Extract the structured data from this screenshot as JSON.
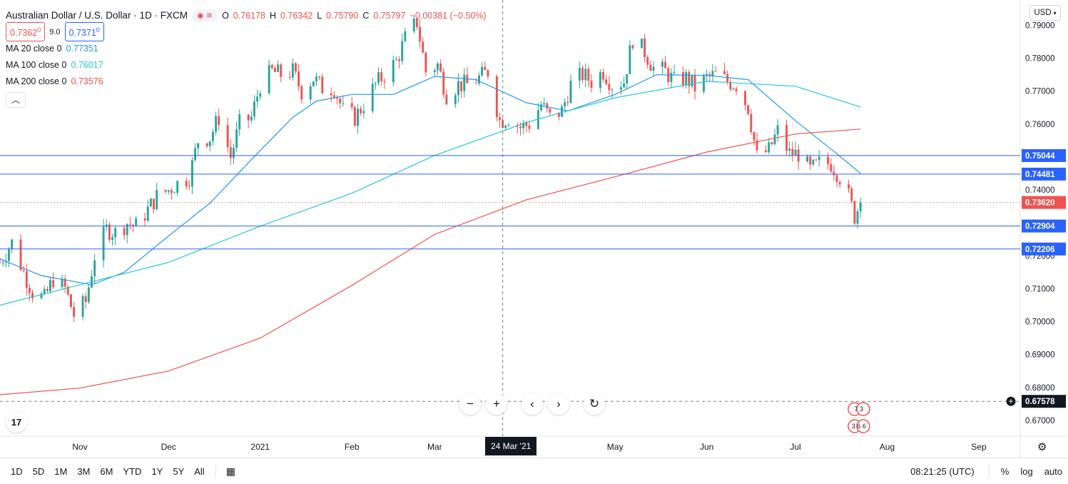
{
  "header": {
    "symbol_title": "Australian Dollar / U.S. Dollar · 1D · FXCM",
    "ohlc": [
      {
        "label": "O",
        "value": "0.76178"
      },
      {
        "label": "H",
        "value": "0.76342"
      },
      {
        "label": "L",
        "value": "0.75790"
      },
      {
        "label": "C",
        "value": "0.75797"
      }
    ],
    "change": "−0.00381 (−0.50%)",
    "bid": "0.7362",
    "bid_small": "0",
    "spread": "9.0",
    "ask": "0.7371",
    "ask_small": "0"
  },
  "indicators": [
    {
      "label": "MA 20 close 0",
      "value": "0.77351",
      "color": "#2196f3"
    },
    {
      "label": "MA 100 close 0",
      "value": "0.76017",
      "color": "#26c6da"
    },
    {
      "label": "MA 200 close 0",
      "value": "0.73576",
      "color": "#ef5350"
    }
  ],
  "currency": "USD",
  "crosshair_date": "24 Mar '21",
  "colors": {
    "up": "#26a69a",
    "down": "#ef5350",
    "hline": "#2962ff",
    "ma20": "#2196f3",
    "ma100": "#26c6da",
    "ma200": "#ef5350"
  },
  "icons": [
    "eye-icon",
    "zoom-out-icon",
    "zoom-in-icon",
    "scroll-left-icon",
    "scroll-right-icon",
    "reset-icon",
    "chevron-up-icon",
    "calendar-icon",
    "gear-icon",
    "plus-circle-icon"
  ],
  "toolbar": {
    "ranges": [
      "1D",
      "5D",
      "1M",
      "3M",
      "6M",
      "YTD",
      "1Y",
      "5Y",
      "All"
    ],
    "time": "08:21:25 (UTC)",
    "percent": "%",
    "log": "log",
    "auto": "auto"
  },
  "chart_data": {
    "type": "candlestick",
    "title": "Australian Dollar / U.S. Dollar · 1D · FXCM",
    "xlim": [
      "2020-10-05",
      "2021-09-15"
    ],
    "ylim": [
      0.6652,
      0.7977
    ],
    "y_ticks": [
      0.67,
      0.68,
      0.69,
      0.7,
      0.71,
      0.72,
      0.73,
      0.74,
      0.75,
      0.76,
      0.77,
      0.78,
      0.79
    ],
    "x_ticks": [
      {
        "label": "Nov",
        "date": "2020-11-01"
      },
      {
        "label": "Dec",
        "date": "2020-12-01"
      },
      {
        "label": "2021",
        "date": "2021-01-01"
      },
      {
        "label": "Feb",
        "date": "2021-02-01"
      },
      {
        "label": "Mar",
        "date": "2021-03-01"
      },
      {
        "label": "Apr",
        "date": "2021-04-01"
      },
      {
        "label": "May",
        "date": "2021-05-01"
      },
      {
        "label": "Jun",
        "date": "2021-06-01"
      },
      {
        "label": "Jul",
        "date": "2021-07-01"
      },
      {
        "label": "Aug",
        "date": "2021-08-01"
      },
      {
        "label": "Sep",
        "date": "2021-09-01"
      }
    ],
    "closes": [
      [
        "2020-10-05",
        0.718
      ],
      [
        "2020-10-09",
        0.724
      ],
      [
        "2020-10-13",
        0.715
      ],
      [
        "2020-10-16",
        0.709
      ],
      [
        "2020-10-20",
        0.707
      ],
      [
        "2020-10-23",
        0.713
      ],
      [
        "2020-10-27",
        0.71
      ],
      [
        "2020-10-30",
        0.702
      ],
      [
        "2020-11-03",
        0.706
      ],
      [
        "2020-11-06",
        0.72
      ],
      [
        "2020-11-10",
        0.728
      ],
      [
        "2020-11-13",
        0.727
      ],
      [
        "2020-11-17",
        0.73
      ],
      [
        "2020-11-20",
        0.729
      ],
      [
        "2020-11-24",
        0.734
      ],
      [
        "2020-11-27",
        0.738
      ],
      [
        "2020-12-01",
        0.74
      ],
      [
        "2020-12-04",
        0.742
      ],
      [
        "2020-12-08",
        0.744
      ],
      [
        "2020-12-11",
        0.755
      ],
      [
        "2020-12-15",
        0.756
      ],
      [
        "2020-12-18",
        0.762
      ],
      [
        "2020-12-22",
        0.75
      ],
      [
        "2020-12-25",
        0.76
      ],
      [
        "2020-12-29",
        0.762
      ],
      [
        "2021-01-01",
        0.772
      ],
      [
        "2021-01-05",
        0.776
      ],
      [
        "2021-01-08",
        0.775
      ],
      [
        "2021-01-12",
        0.776
      ],
      [
        "2021-01-15",
        0.77
      ],
      [
        "2021-01-19",
        0.774
      ],
      [
        "2021-01-22",
        0.771
      ],
      [
        "2021-01-26",
        0.771
      ],
      [
        "2021-01-29",
        0.764
      ],
      [
        "2021-02-02",
        0.762
      ],
      [
        "2021-02-05",
        0.766
      ],
      [
        "2021-02-09",
        0.772
      ],
      [
        "2021-02-12",
        0.775
      ],
      [
        "2021-02-16",
        0.779
      ],
      [
        "2021-02-19",
        0.786
      ],
      [
        "2021-02-23",
        0.791
      ],
      [
        "2021-02-26",
        0.776
      ],
      [
        "2021-03-02",
        0.778
      ],
      [
        "2021-03-05",
        0.769
      ],
      [
        "2021-03-09",
        0.772
      ],
      [
        "2021-03-12",
        0.772
      ],
      [
        "2021-03-16",
        0.774
      ],
      [
        "2021-03-19",
        0.776
      ],
      [
        "2021-03-23",
        0.761
      ],
      [
        "2021-03-26",
        0.762
      ],
      [
        "2021-03-30",
        0.759
      ],
      [
        "2021-04-02",
        0.76
      ],
      [
        "2021-04-06",
        0.766
      ],
      [
        "2021-04-09",
        0.762
      ],
      [
        "2021-04-13",
        0.764
      ],
      [
        "2021-04-16",
        0.772
      ],
      [
        "2021-04-20",
        0.775
      ],
      [
        "2021-04-23",
        0.773
      ],
      [
        "2021-04-27",
        0.776
      ],
      [
        "2021-04-30",
        0.772
      ],
      [
        "2021-05-04",
        0.773
      ],
      [
        "2021-05-07",
        0.786
      ],
      [
        "2021-05-11",
        0.782
      ],
      [
        "2021-05-14",
        0.777
      ],
      [
        "2021-05-18",
        0.776
      ],
      [
        "2021-05-21",
        0.773
      ],
      [
        "2021-05-25",
        0.774
      ],
      [
        "2021-05-28",
        0.771
      ],
      [
        "2021-06-01",
        0.774
      ],
      [
        "2021-06-04",
        0.775
      ],
      [
        "2021-06-08",
        0.773
      ],
      [
        "2021-06-11",
        0.772
      ],
      [
        "2021-06-15",
        0.765
      ],
      [
        "2021-06-18",
        0.75
      ],
      [
        "2021-06-22",
        0.752
      ],
      [
        "2021-06-25",
        0.758
      ],
      [
        "2021-06-29",
        0.751
      ],
      [
        "2021-07-02",
        0.751
      ],
      [
        "2021-07-06",
        0.746
      ],
      [
        "2021-07-09",
        0.748
      ],
      [
        "2021-07-13",
        0.748
      ],
      [
        "2021-07-16",
        0.744
      ],
      [
        "2021-07-19",
        0.738
      ],
      [
        "2021-07-21",
        0.732
      ],
      [
        "2021-07-23",
        0.7362
      ]
    ],
    "series": [
      {
        "name": "MA 20 close 0",
        "points": [
          [
            "2020-10-05",
            0.719
          ],
          [
            "2020-10-19",
            0.714
          ],
          [
            "2020-11-05",
            0.7112
          ],
          [
            "2020-11-16",
            0.715
          ],
          [
            "2020-12-01",
            0.726
          ],
          [
            "2020-12-15",
            0.736
          ],
          [
            "2021-01-01",
            0.752
          ],
          [
            "2021-01-12",
            0.762
          ],
          [
            "2021-01-20",
            0.767
          ],
          [
            "2021-02-01",
            0.769
          ],
          [
            "2021-02-15",
            0.769
          ],
          [
            "2021-03-01",
            0.7745
          ],
          [
            "2021-03-15",
            0.7735
          ],
          [
            "2021-04-01",
            0.7665
          ],
          [
            "2021-04-15",
            0.764
          ],
          [
            "2021-05-01",
            0.769
          ],
          [
            "2021-05-15",
            0.775
          ],
          [
            "2021-06-01",
            0.7748
          ],
          [
            "2021-06-15",
            0.7735
          ],
          [
            "2021-07-01",
            0.761
          ],
          [
            "2021-07-15",
            0.751
          ],
          [
            "2021-07-23",
            0.745
          ]
        ]
      },
      {
        "name": "MA 100 close 0",
        "points": [
          [
            "2020-10-05",
            0.705
          ],
          [
            "2020-11-01",
            0.7112
          ],
          [
            "2020-12-01",
            0.718
          ],
          [
            "2021-01-01",
            0.729
          ],
          [
            "2021-02-01",
            0.739
          ],
          [
            "2021-03-01",
            0.7505
          ],
          [
            "2021-04-01",
            0.7605
          ],
          [
            "2021-05-01",
            0.768
          ],
          [
            "2021-06-01",
            0.773
          ],
          [
            "2021-07-01",
            0.7715
          ],
          [
            "2021-07-23",
            0.7652
          ]
        ]
      },
      {
        "name": "MA 200 close 0",
        "points": [
          [
            "2020-10-05",
            0.6778
          ],
          [
            "2020-11-01",
            0.6798
          ],
          [
            "2020-12-01",
            0.685
          ],
          [
            "2021-01-01",
            0.695
          ],
          [
            "2021-02-01",
            0.711
          ],
          [
            "2021-03-01",
            0.7265
          ],
          [
            "2021-04-01",
            0.737
          ],
          [
            "2021-05-01",
            0.744
          ],
          [
            "2021-06-01",
            0.7515
          ],
          [
            "2021-07-01",
            0.757
          ],
          [
            "2021-07-23",
            0.7585
          ]
        ]
      }
    ],
    "horizontal_lines": [
      {
        "value": 0.75044,
        "label": "0.75044"
      },
      {
        "value": 0.74481,
        "label": "0.74481"
      },
      {
        "value": 0.72904,
        "label": "0.72904"
      },
      {
        "value": 0.72206,
        "label": "0.72206"
      }
    ],
    "current_price": {
      "value": 0.7362,
      "label": "0.73620"
    },
    "crosshair": {
      "date": "2021-03-24",
      "value": 0.67578,
      "label": "0.67578"
    },
    "event_badges": [
      {
        "text": "7 3"
      },
      {
        "text": "3 6 6"
      }
    ]
  }
}
